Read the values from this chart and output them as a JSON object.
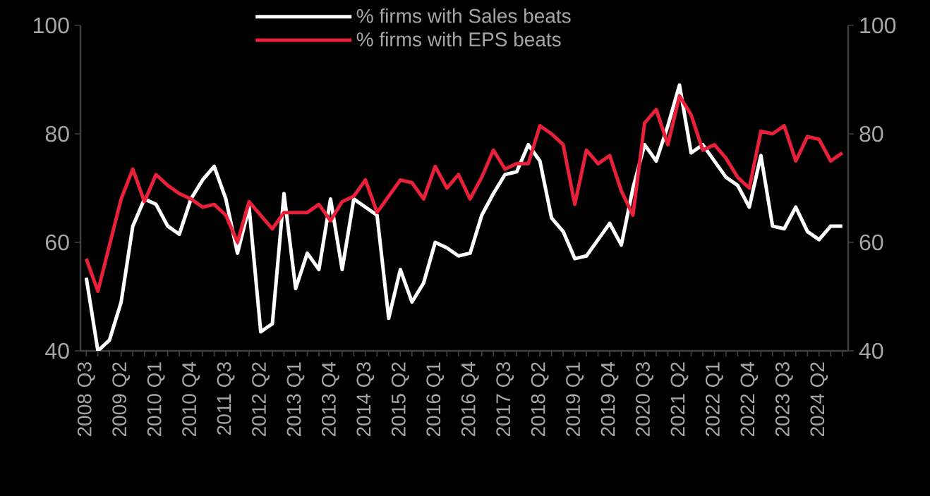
{
  "chart_data": {
    "type": "line",
    "categories": [
      "2008 Q3",
      null,
      null,
      "2009 Q2",
      null,
      null,
      "2010 Q1",
      null,
      null,
      "2010 Q4",
      null,
      null,
      "2011 Q3",
      null,
      null,
      "2012 Q2",
      null,
      null,
      "2013 Q1",
      null,
      null,
      "2013 Q4",
      null,
      null,
      "2014 Q3",
      null,
      null,
      "2015 Q2",
      null,
      null,
      "2016 Q1",
      null,
      null,
      "2016 Q4",
      null,
      null,
      "2017 Q3",
      null,
      null,
      "2018 Q2",
      null,
      null,
      "2019 Q1",
      null,
      null,
      "2019 Q4",
      null,
      null,
      "2020 Q3",
      null,
      null,
      "2021 Q2",
      null,
      null,
      "2022 Q1",
      null,
      null,
      "2022 Q4",
      null,
      null,
      "2023 Q3",
      null,
      null,
      "2024 Q2",
      null,
      null
    ],
    "series": [
      {
        "name": "% firms with Sales beats",
        "color": "#ffffff",
        "values": [
          53.5,
          40,
          42,
          49,
          63,
          68,
          67,
          63,
          61.5,
          68,
          71.5,
          74,
          68,
          58,
          66.5,
          43.5,
          45,
          69,
          51.5,
          58,
          55,
          68,
          55,
          68,
          66.5,
          65,
          46,
          55,
          49,
          52.5,
          60,
          59,
          57.5,
          58,
          65,
          69,
          72.5,
          73,
          78,
          75,
          64.5,
          62,
          57,
          57.5,
          60.5,
          63.5,
          59.5,
          70,
          78,
          75,
          81.5,
          89,
          76.5,
          78,
          75,
          72,
          70.5,
          66.5,
          76,
          63,
          62.5,
          66.5,
          62,
          60.5,
          63,
          63
        ]
      },
      {
        "name": "% firms with EPS beats",
        "color": "#e8203a",
        "values": [
          57,
          51,
          59.5,
          68,
          73.5,
          67.5,
          72.5,
          70.5,
          69,
          68,
          66.5,
          67,
          65,
          60,
          67.5,
          65,
          62.5,
          65.5,
          65.5,
          65.5,
          67,
          64,
          67.5,
          68.5,
          71.5,
          65.5,
          68.5,
          71.5,
          71,
          68,
          74,
          70,
          72.5,
          68,
          72,
          77,
          73.5,
          74.5,
          74.5,
          81.5,
          80,
          78,
          67,
          77,
          74.5,
          76,
          69.5,
          65,
          82,
          84.5,
          78,
          87,
          83.5,
          77,
          78,
          75.5,
          72,
          70,
          80.5,
          80,
          81.5,
          75,
          79.5,
          79,
          75,
          76.5
        ]
      }
    ],
    "ylim": [
      40,
      100
    ],
    "yticks": [
      40,
      60,
      80,
      100
    ],
    "y2lim": [
      40,
      100
    ],
    "y2ticks": [
      40,
      60,
      80,
      100
    ],
    "legend": "top",
    "line_style": "solid"
  }
}
